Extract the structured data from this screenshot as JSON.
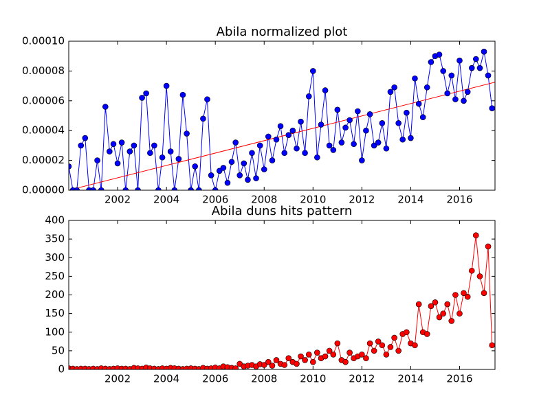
{
  "chart_data": [
    {
      "type": "line",
      "title": "Abila normalized plot",
      "color": "#0000ff",
      "x": [
        2000,
        2000.17,
        2000.33,
        2000.5,
        2000.67,
        2000.83,
        2001,
        2001.17,
        2001.33,
        2001.5,
        2001.67,
        2001.83,
        2002,
        2002.17,
        2002.33,
        2002.5,
        2002.67,
        2002.83,
        2003,
        2003.17,
        2003.33,
        2003.5,
        2003.67,
        2003.83,
        2004,
        2004.17,
        2004.33,
        2004.5,
        2004.67,
        2004.83,
        2005,
        2005.17,
        2005.33,
        2005.5,
        2005.67,
        2005.83,
        2006,
        2006.17,
        2006.33,
        2006.5,
        2006.67,
        2006.83,
        2007,
        2007.17,
        2007.33,
        2007.5,
        2007.67,
        2007.83,
        2008,
        2008.17,
        2008.33,
        2008.5,
        2008.67,
        2008.83,
        2009,
        2009.17,
        2009.33,
        2009.5,
        2009.67,
        2009.83,
        2010,
        2010.17,
        2010.33,
        2010.5,
        2010.67,
        2010.83,
        2011,
        2011.17,
        2011.33,
        2011.5,
        2011.67,
        2011.83,
        2012,
        2012.17,
        2012.33,
        2012.5,
        2012.67,
        2012.83,
        2013,
        2013.17,
        2013.33,
        2013.5,
        2013.67,
        2013.83,
        2014,
        2014.17,
        2014.33,
        2014.5,
        2014.67,
        2014.83,
        2015,
        2015.17,
        2015.33,
        2015.5,
        2015.67,
        2015.83,
        2016,
        2016.17,
        2016.33,
        2016.5,
        2016.67,
        2016.83,
        2017,
        2017.17,
        2017.33
      ],
      "values": [
        1.6e-05,
        0,
        0,
        3e-05,
        3.5e-05,
        0,
        0,
        2e-05,
        0,
        5.6e-05,
        2.6e-05,
        3.1e-05,
        1.8e-05,
        3.2e-05,
        0,
        2.6e-05,
        3e-05,
        0,
        6.2e-05,
        6.5e-05,
        2.5e-05,
        3e-05,
        0,
        2.2e-05,
        7e-05,
        2.6e-05,
        0,
        2.1e-05,
        6.4e-05,
        3.8e-05,
        0,
        1.6e-05,
        0,
        4.8e-05,
        6.1e-05,
        1e-05,
        0,
        1.3e-05,
        1.5e-05,
        5e-06,
        1.9e-05,
        3.2e-05,
        1e-05,
        1.8e-05,
        7e-06,
        2.5e-05,
        8e-06,
        3e-05,
        1.4e-05,
        3.6e-05,
        2e-05,
        3.4e-05,
        4.3e-05,
        2.5e-05,
        3.7e-05,
        4e-05,
        2.8e-05,
        4.6e-05,
        2.5e-05,
        6.3e-05,
        8e-05,
        2.2e-05,
        4.4e-05,
        6.7e-05,
        3e-05,
        2.7e-05,
        5.4e-05,
        3.2e-05,
        4.2e-05,
        4.7e-05,
        3.1e-05,
        5.3e-05,
        2e-05,
        4e-05,
        5.1e-05,
        3e-05,
        3.2e-05,
        4.5e-05,
        2.8e-05,
        6.6e-05,
        6.9e-05,
        4.5e-05,
        3.4e-05,
        5.2e-05,
        3.5e-05,
        7.5e-05,
        5.8e-05,
        4.9e-05,
        6.9e-05,
        8.6e-05,
        9e-05,
        9.1e-05,
        8e-05,
        6.5e-05,
        7.7e-05,
        6.1e-05,
        8.7e-05,
        6e-05,
        6.6e-05,
        8.2e-05,
        8.8e-05,
        8.2e-05,
        9.3e-05,
        7.7e-05,
        5.5e-05
      ],
      "trend_line": {
        "x": [
          2000,
          2017.45
        ],
        "values": [
          0,
          7.25e-05
        ],
        "color": "#ff0000"
      },
      "xlim": [
        2000,
        2017.45
      ],
      "xticks": [
        2002,
        2004,
        2006,
        2008,
        2010,
        2012,
        2014,
        2016
      ],
      "ylim": [
        0,
        0.0001
      ],
      "yticks": [
        {
          "value": 0,
          "label": "0.00000"
        },
        {
          "value": 2e-05,
          "label": "0.00002"
        },
        {
          "value": 4e-05,
          "label": "0.00004"
        },
        {
          "value": 6e-05,
          "label": "0.00006"
        },
        {
          "value": 8e-05,
          "label": "0.00008"
        },
        {
          "value": 0.0001,
          "label": "0.00010"
        }
      ]
    },
    {
      "type": "line",
      "title": "Abila duns hits pattern",
      "color": "#ff0000",
      "x": [
        2000,
        2000.17,
        2000.33,
        2000.5,
        2000.67,
        2000.83,
        2001,
        2001.17,
        2001.33,
        2001.5,
        2001.67,
        2001.83,
        2002,
        2002.17,
        2002.33,
        2002.5,
        2002.67,
        2002.83,
        2003,
        2003.17,
        2003.33,
        2003.5,
        2003.67,
        2003.83,
        2004,
        2004.17,
        2004.33,
        2004.5,
        2004.67,
        2004.83,
        2005,
        2005.17,
        2005.33,
        2005.5,
        2005.67,
        2005.83,
        2006,
        2006.17,
        2006.33,
        2006.5,
        2006.67,
        2006.83,
        2007,
        2007.17,
        2007.33,
        2007.5,
        2007.67,
        2007.83,
        2008,
        2008.17,
        2008.33,
        2008.5,
        2008.67,
        2008.83,
        2009,
        2009.17,
        2009.33,
        2009.5,
        2009.67,
        2009.83,
        2010,
        2010.17,
        2010.33,
        2010.5,
        2010.67,
        2010.83,
        2011,
        2011.17,
        2011.33,
        2011.5,
        2011.67,
        2011.83,
        2012,
        2012.17,
        2012.33,
        2012.5,
        2012.67,
        2012.83,
        2013,
        2013.17,
        2013.33,
        2013.5,
        2013.67,
        2013.83,
        2014,
        2014.17,
        2014.33,
        2014.5,
        2014.67,
        2014.83,
        2015,
        2015.17,
        2015.33,
        2015.5,
        2015.67,
        2015.83,
        2016,
        2016.17,
        2016.33,
        2016.5,
        2016.67,
        2016.83,
        2017,
        2017.17,
        2017.33
      ],
      "values": [
        3,
        2,
        1,
        2,
        2,
        1,
        2,
        1,
        3,
        2,
        1,
        2,
        3,
        2,
        2,
        1,
        4,
        3,
        2,
        5,
        3,
        2,
        1,
        3,
        2,
        4,
        3,
        2,
        1,
        2,
        3,
        2,
        1,
        4,
        2,
        3,
        5,
        3,
        8,
        6,
        4,
        3,
        15,
        8,
        10,
        12,
        8,
        14,
        12,
        20,
        10,
        25,
        15,
        12,
        30,
        20,
        15,
        35,
        25,
        40,
        20,
        45,
        30,
        35,
        50,
        40,
        70,
        25,
        20,
        45,
        30,
        35,
        40,
        30,
        70,
        50,
        75,
        65,
        40,
        60,
        85,
        50,
        95,
        100,
        70,
        65,
        175,
        100,
        95,
        170,
        180,
        140,
        150,
        175,
        130,
        200,
        150,
        205,
        195,
        265,
        360,
        250,
        205,
        330,
        65
      ],
      "xlim": [
        2000,
        2017.45
      ],
      "xticks": [
        2002,
        2004,
        2006,
        2008,
        2010,
        2012,
        2014,
        2016
      ],
      "ylim": [
        0,
        400
      ],
      "yticks": [
        0,
        50,
        100,
        150,
        200,
        250,
        300,
        350,
        400
      ]
    }
  ]
}
